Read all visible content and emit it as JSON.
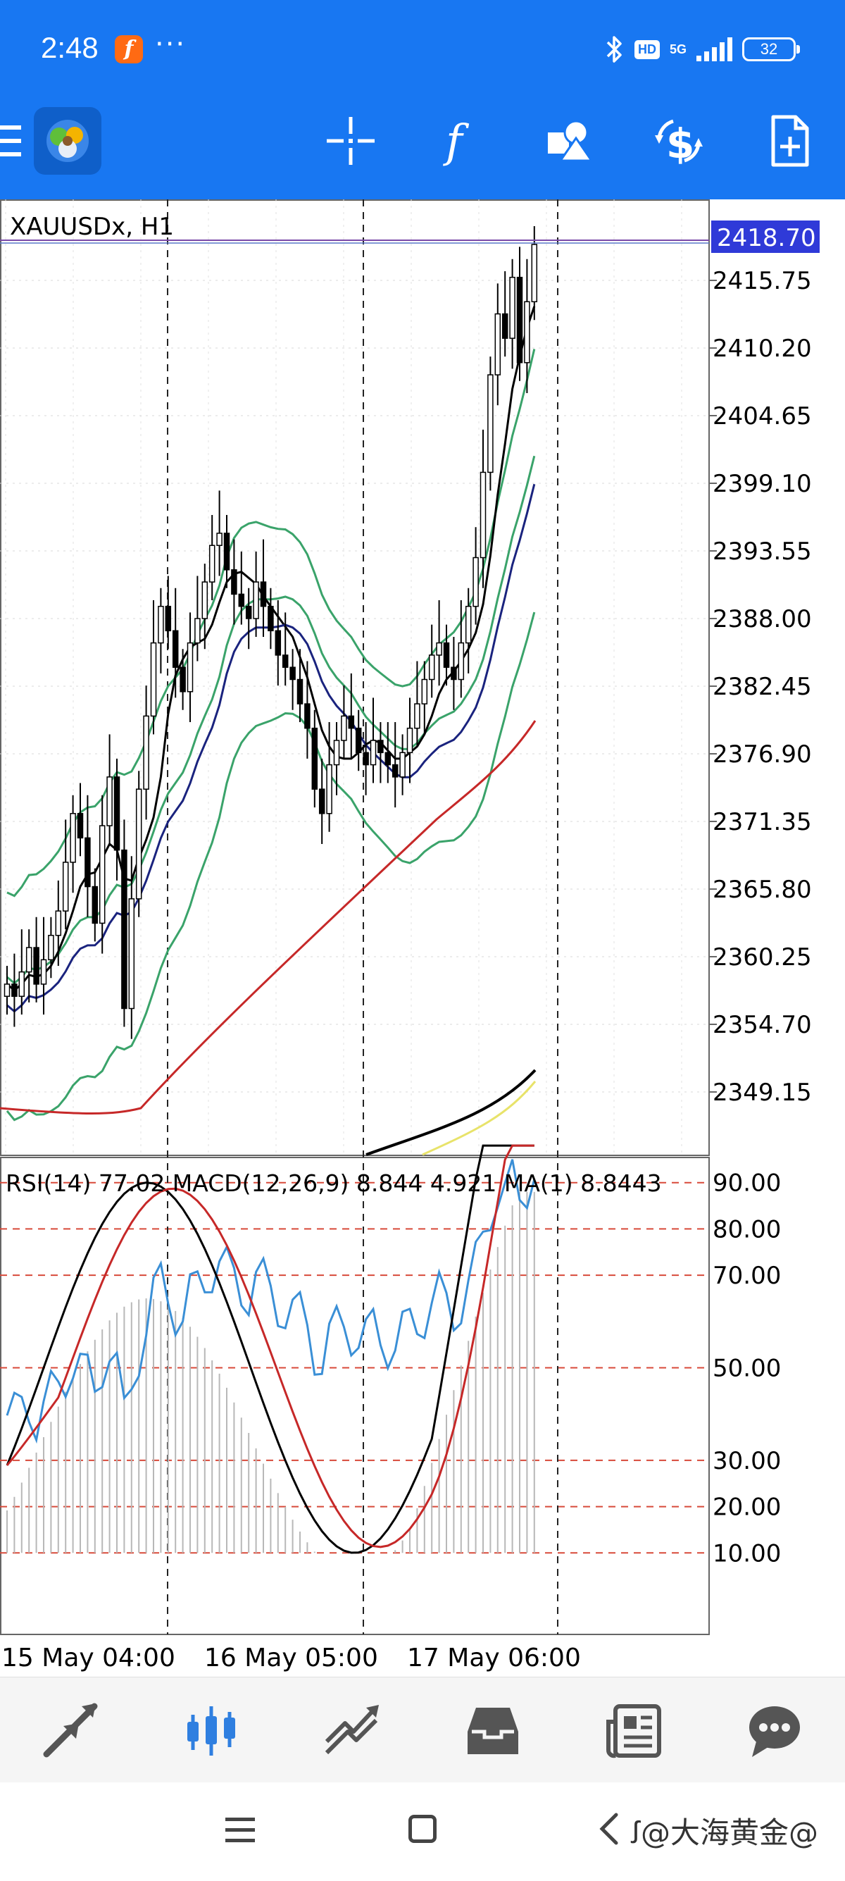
{
  "status_bar": {
    "time": "2:48",
    "app_badge": "f",
    "more": "···",
    "hd": "HD",
    "network": "5G",
    "battery": "32"
  },
  "toolbar": {
    "icons": [
      "menu-icon",
      "app-logo-icon",
      "crosshair-icon",
      "indicators-icon",
      "objects-icon",
      "trade-icon",
      "new-order-icon"
    ]
  },
  "chart": {
    "symbol_label": "XAUUSDx, H1",
    "current_price": "2418.70",
    "price_ticks": [
      "2415.75",
      "2410.20",
      "2404.65",
      "2399.10",
      "2393.55",
      "2388.00",
      "2382.45",
      "2376.90",
      "2371.35",
      "2365.80",
      "2360.25",
      "2354.70",
      "2349.15"
    ],
    "indicator_label": "RSI(14) 77.02 MACD(12,26,9) 8.844 4.921 MA(1) 8.8443",
    "indicator_ticks": [
      "90.00",
      "80.00",
      "70.00",
      "50.00",
      "30.00",
      "20.00",
      "10.00"
    ],
    "time_labels": [
      "15 May 04:00",
      "16 May 05:00",
      "17 May 06:00"
    ],
    "colors": {
      "bullish": "#2e7d32",
      "bollinger": "#3aa36a",
      "ma_fast": "#000000",
      "ma_mid": "#1a237e",
      "ma_slow": "#c62828",
      "ma_long": "#000000",
      "ma_long2": "#e8e36a",
      "price_badge": "#2f3ad8",
      "rsi": "#3a8fd6",
      "macd": "#000000",
      "signal": "#c62828",
      "levels": "#d84a3a"
    }
  },
  "bottom_tabs": [
    {
      "name": "quotes-tab",
      "icon": "quotes-icon",
      "active": false
    },
    {
      "name": "chart-tab",
      "icon": "candles-icon",
      "active": true
    },
    {
      "name": "trade-tab",
      "icon": "trade-chart-icon",
      "active": false
    },
    {
      "name": "history-tab",
      "icon": "inbox-icon",
      "active": false
    },
    {
      "name": "news-tab",
      "icon": "news-icon",
      "active": false
    },
    {
      "name": "messages-tab",
      "icon": "chat-icon",
      "active": false
    }
  ],
  "system_nav": {
    "watermark": "ꭍ@大海黄金@"
  }
}
